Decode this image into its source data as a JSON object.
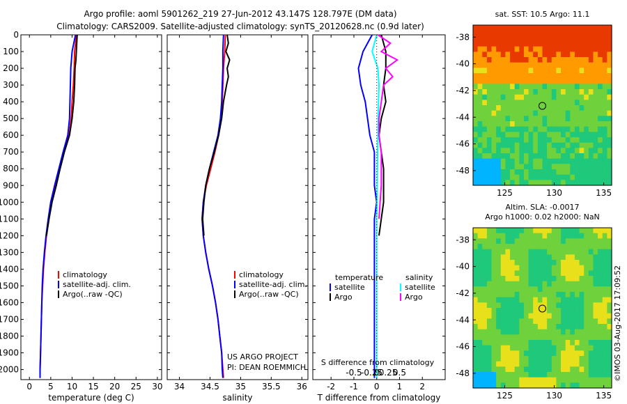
{
  "title": {
    "line1": "Argo profile: aoml 5901262_219 27-Jun-2012 43.147S 128.797E (DM data)",
    "line2": "Climatology: CARS2009. Satellite-adjusted climatology: synTS_20120628.nc (0.9d later)"
  },
  "colors": {
    "climatology": "#ff0000",
    "satellite": "#0000ff",
    "argo": "#000000",
    "sal_satellite": "#00ffff",
    "sal_argo": "#ff00ff"
  },
  "chart_data": [
    {
      "type": "line",
      "name": "temperature-panel",
      "xlabel": "temperature (deg C)",
      "xlim": [
        -2,
        31
      ],
      "ylim": [
        0,
        2060
      ],
      "xticks": [
        0,
        5,
        10,
        15,
        20,
        25,
        30
      ],
      "yticks": [
        0,
        100,
        200,
        300,
        400,
        500,
        600,
        700,
        800,
        900,
        1000,
        1100,
        1200,
        1300,
        1400,
        1500,
        1600,
        1700,
        1800,
        1900,
        2000
      ],
      "legend": [
        "climatology",
        "satellite-adj. clim.",
        "Argo(..raw -QC)"
      ],
      "series": [
        {
          "name": "climatology",
          "color": "#ff0000",
          "points": [
            [
              11.0,
              0
            ],
            [
              10.8,
              50
            ],
            [
              10.6,
              100
            ],
            [
              10.5,
              200
            ],
            [
              10.3,
              300
            ],
            [
              10.0,
              400
            ],
            [
              9.8,
              500
            ],
            [
              9.3,
              600
            ],
            [
              8.0,
              700
            ],
            [
              7.0,
              800
            ],
            [
              6.0,
              900
            ],
            [
              5.0,
              1000
            ],
            [
              4.5,
              1100
            ],
            [
              4.0,
              1200
            ],
            [
              3.6,
              1300
            ],
            [
              3.3,
              1400
            ],
            [
              3.1,
              1500
            ],
            [
              2.9,
              1600
            ],
            [
              2.8,
              1700
            ],
            [
              2.7,
              1800
            ],
            [
              2.6,
              1900
            ],
            [
              2.5,
              2000
            ],
            [
              2.5,
              2050
            ]
          ]
        },
        {
          "name": "satellite-adj. clim.",
          "color": "#0000ff",
          "points": [
            [
              10.8,
              0
            ],
            [
              10.4,
              50
            ],
            [
              10.0,
              100
            ],
            [
              9.7,
              200
            ],
            [
              9.6,
              300
            ],
            [
              9.5,
              400
            ],
            [
              9.4,
              500
            ],
            [
              9.0,
              600
            ],
            [
              7.9,
              700
            ],
            [
              6.9,
              800
            ],
            [
              5.9,
              900
            ],
            [
              5.0,
              1000
            ],
            [
              4.4,
              1100
            ],
            [
              3.9,
              1200
            ],
            [
              3.5,
              1300
            ],
            [
              3.2,
              1400
            ],
            [
              3.0,
              1500
            ],
            [
              2.9,
              1600
            ],
            [
              2.8,
              1700
            ],
            [
              2.7,
              1800
            ],
            [
              2.6,
              1900
            ],
            [
              2.5,
              2000
            ],
            [
              2.5,
              2050
            ]
          ]
        },
        {
          "name": "Argo(..raw -QC)",
          "color": "#000000",
          "points": [
            [
              11.2,
              0
            ],
            [
              11.1,
              50
            ],
            [
              11.0,
              100
            ],
            [
              10.9,
              150
            ],
            [
              10.7,
              200
            ],
            [
              10.6,
              300
            ],
            [
              10.4,
              400
            ],
            [
              10.0,
              500
            ],
            [
              9.4,
              600
            ],
            [
              8.2,
              700
            ],
            [
              7.2,
              800
            ],
            [
              6.3,
              900
            ],
            [
              5.3,
              1000
            ],
            [
              4.6,
              1100
            ],
            [
              4.0,
              1200
            ]
          ]
        }
      ]
    },
    {
      "type": "line",
      "name": "salinity-panel",
      "xlabel": "salinity",
      "xlim": [
        33.8,
        36.1
      ],
      "ylim": [
        0,
        2060
      ],
      "xticks": [
        34,
        34.5,
        35,
        35.5,
        36
      ],
      "legend": [
        "climatology",
        "satellite-adj. clim.",
        "Argo(..raw -QC)"
      ],
      "series": [
        {
          "name": "climatology",
          "color": "#ff0000",
          "points": [
            [
              34.75,
              0
            ],
            [
              34.74,
              100
            ],
            [
              34.72,
              200
            ],
            [
              34.71,
              300
            ],
            [
              34.7,
              400
            ],
            [
              34.68,
              500
            ],
            [
              34.64,
              600
            ],
            [
              34.58,
              700
            ],
            [
              34.51,
              800
            ],
            [
              34.44,
              900
            ],
            [
              34.39,
              1000
            ],
            [
              34.37,
              1100
            ],
            [
              34.39,
              1200
            ],
            [
              34.43,
              1300
            ],
            [
              34.48,
              1400
            ],
            [
              34.54,
              1500
            ],
            [
              34.59,
              1600
            ],
            [
              34.63,
              1700
            ],
            [
              34.66,
              1800
            ],
            [
              34.69,
              1900
            ],
            [
              34.71,
              2000
            ],
            [
              34.72,
              2050
            ]
          ]
        },
        {
          "name": "satellite-adj. clim.",
          "color": "#0000ff",
          "points": [
            [
              34.72,
              0
            ],
            [
              34.71,
              100
            ],
            [
              34.71,
              200
            ],
            [
              34.7,
              300
            ],
            [
              34.69,
              400
            ],
            [
              34.67,
              500
            ],
            [
              34.63,
              600
            ],
            [
              34.56,
              700
            ],
            [
              34.49,
              800
            ],
            [
              34.43,
              900
            ],
            [
              34.39,
              1000
            ],
            [
              34.37,
              1100
            ],
            [
              34.39,
              1200
            ],
            [
              34.43,
              1300
            ],
            [
              34.48,
              1400
            ],
            [
              34.54,
              1500
            ],
            [
              34.59,
              1600
            ],
            [
              34.63,
              1700
            ],
            [
              34.66,
              1800
            ],
            [
              34.69,
              1900
            ],
            [
              34.7,
              2000
            ],
            [
              34.71,
              2050
            ]
          ]
        },
        {
          "name": "Argo(..raw -QC)",
          "color": "#000000",
          "points": [
            [
              34.78,
              0
            ],
            [
              34.8,
              50
            ],
            [
              34.76,
              100
            ],
            [
              34.82,
              150
            ],
            [
              34.78,
              200
            ],
            [
              34.8,
              250
            ],
            [
              34.77,
              300
            ],
            [
              34.72,
              400
            ],
            [
              34.69,
              500
            ],
            [
              34.64,
              600
            ],
            [
              34.57,
              700
            ],
            [
              34.49,
              800
            ],
            [
              34.43,
              900
            ],
            [
              34.4,
              1000
            ],
            [
              34.38,
              1100
            ],
            [
              34.4,
              1200
            ]
          ]
        }
      ]
    },
    {
      "type": "line",
      "name": "difference-panel",
      "xlabel": "T difference from climatology",
      "top_label": "S difference from climatology",
      "xlim": [
        -2.8,
        3.0
      ],
      "ylim": [
        0,
        2060
      ],
      "xticks": [
        -2,
        -1,
        0,
        1,
        2
      ],
      "top_ticks": [
        "-0.5",
        "-0.25",
        "0",
        "0.25",
        "0.5"
      ],
      "legend_left_header": "temperature",
      "legend_right_header": "salinity",
      "legend_left": [
        "satellite",
        "Argo"
      ],
      "legend_right": [
        "satellite",
        "Argo"
      ],
      "series": [
        {
          "name": "T satellite",
          "color": "#0000ff",
          "points": [
            [
              -0.2,
              0
            ],
            [
              -0.4,
              50
            ],
            [
              -0.6,
              100
            ],
            [
              -0.8,
              200
            ],
            [
              -0.7,
              300
            ],
            [
              -0.5,
              400
            ],
            [
              -0.4,
              500
            ],
            [
              -0.3,
              600
            ],
            [
              -0.1,
              700
            ],
            [
              -0.1,
              800
            ],
            [
              -0.1,
              900
            ],
            [
              0,
              1000
            ],
            [
              -0.1,
              1100
            ],
            [
              -0.1,
              1200
            ],
            [
              -0.1,
              1400
            ],
            [
              -0.1,
              1600
            ],
            [
              -0.1,
              1800
            ],
            [
              -0.1,
              2000
            ],
            [
              -0.1,
              2050
            ]
          ]
        },
        {
          "name": "T Argo",
          "color": "#000000",
          "points": [
            [
              0.2,
              0
            ],
            [
              0.3,
              50
            ],
            [
              0.4,
              100
            ],
            [
              0.4,
              200
            ],
            [
              0.3,
              300
            ],
            [
              0.4,
              400
            ],
            [
              0.2,
              500
            ],
            [
              0.1,
              600
            ],
            [
              0.2,
              700
            ],
            [
              0.3,
              800
            ],
            [
              0.3,
              900
            ],
            [
              0.3,
              1000
            ],
            [
              0.2,
              1100
            ],
            [
              0.1,
              1200
            ]
          ]
        },
        {
          "name": "S satellite",
          "color": "#00ffff",
          "points": [
            [
              0.0,
              0
            ],
            [
              -0.1,
              50
            ],
            [
              -0.2,
              100
            ],
            [
              0.05,
              200
            ],
            [
              0.1,
              300
            ],
            [
              0.08,
              400
            ],
            [
              0.06,
              500
            ],
            [
              0.05,
              600
            ],
            [
              0.04,
              700
            ],
            [
              0.03,
              800
            ],
            [
              0.02,
              900
            ],
            [
              0.02,
              1000
            ],
            [
              0.0,
              1100
            ],
            [
              0.0,
              1200
            ],
            [
              0.0,
              1400
            ],
            [
              0.0,
              1600
            ],
            [
              0.0,
              1800
            ],
            [
              0.0,
              2000
            ],
            [
              0.0,
              2050
            ]
          ]
        },
        {
          "name": "S Argo",
          "color": "#ff00ff",
          "points": [
            [
              0.05,
              0
            ],
            [
              0.6,
              50
            ],
            [
              0.2,
              100
            ],
            [
              0.9,
              150
            ],
            [
              0.4,
              200
            ],
            [
              0.7,
              250
            ],
            [
              0.3,
              300
            ],
            [
              0.2,
              400
            ],
            [
              0.1,
              500
            ],
            [
              0.1,
              600
            ],
            [
              0.2,
              700
            ],
            [
              0.2,
              800
            ],
            [
              0.2,
              900
            ],
            [
              0.15,
              1000
            ],
            [
              0.1,
              1100
            ]
          ]
        }
      ]
    },
    {
      "type": "heatmap",
      "name": "sst-map",
      "title": "sat. SST: 10.5 Argo: 11.1",
      "xticks": [
        125,
        130,
        135
      ],
      "yticks": [
        -38,
        -40,
        -42,
        -44,
        -46,
        -48
      ],
      "xlim": [
        121.8,
        135.8
      ],
      "ylim": [
        -49.1,
        -37.1
      ],
      "marker": [
        128.8,
        -43.15
      ]
    },
    {
      "type": "heatmap",
      "name": "sla-map",
      "title_line1": "Altim. SLA: -0.0017",
      "title_line2": "Argo h1000: 0.02 h2000: NaN",
      "xticks": [
        125,
        130,
        135
      ],
      "yticks": [
        -38,
        -40,
        -42,
        -44,
        -46,
        -48
      ],
      "xlim": [
        121.8,
        135.8
      ],
      "ylim": [
        -49.1,
        -37.1
      ],
      "marker": [
        128.8,
        -43.15
      ]
    }
  ],
  "annotations": {
    "project_line1": "US ARGO PROJECT",
    "project_line2": "PI: DEAN ROEMMICH",
    "credit": "©IMOS 03-Aug-2017 17:09:52"
  }
}
